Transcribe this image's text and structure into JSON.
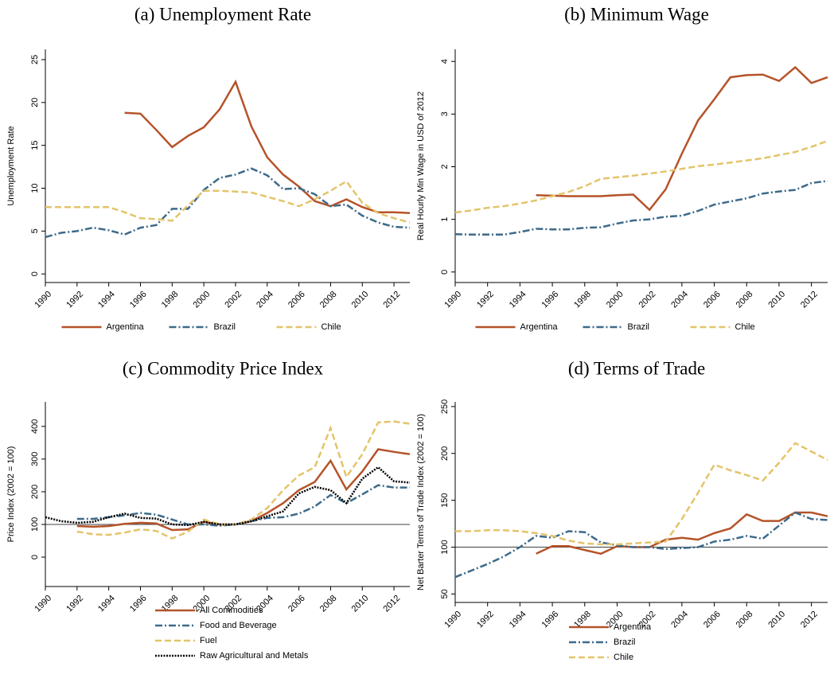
{
  "chart_data": [
    {
      "type": "line",
      "title": "(a) Unemployment Rate",
      "ylabel": "Unemployment Rate",
      "x": [
        1990,
        1991,
        1992,
        1993,
        1994,
        1995,
        1996,
        1997,
        1998,
        1999,
        2000,
        2001,
        2002,
        2003,
        2004,
        2005,
        2006,
        2007,
        2008,
        2009,
        2010,
        2011,
        2012,
        2013
      ],
      "xlim": [
        1990,
        2013
      ],
      "xticks": [
        1990,
        1992,
        1994,
        1996,
        1998,
        2000,
        2002,
        2004,
        2006,
        2008,
        2010,
        2012
      ],
      "ylim": [
        -1,
        26.2
      ],
      "yticks": [
        0,
        5,
        10,
        15,
        20,
        25
      ],
      "legend": "bottom",
      "legend_direction": "horizontal",
      "series": [
        {
          "name": "Argentina",
          "color": "#b5532a",
          "dash": "solid",
          "values": [
            null,
            null,
            null,
            null,
            null,
            18.8,
            18.7,
            16.8,
            14.8,
            16.1,
            17.1,
            19.2,
            22.4,
            17.2,
            13.6,
            11.6,
            10.2,
            8.5,
            7.9,
            8.7,
            7.8,
            7.2,
            7.2,
            7.1
          ]
        },
        {
          "name": "Brazil",
          "color": "#3d6a8a",
          "dash": "dash-dot",
          "values": [
            4.3,
            4.8,
            5.0,
            5.4,
            5.1,
            4.6,
            5.4,
            5.7,
            7.6,
            7.6,
            9.8,
            11.2,
            11.6,
            12.3,
            11.5,
            9.9,
            10.0,
            9.3,
            7.9,
            8.1,
            6.8,
            6.0,
            5.5,
            5.4
          ]
        },
        {
          "name": "Chile",
          "color": "#e3c46a",
          "dash": "dash",
          "values": [
            7.8,
            7.8,
            7.8,
            7.8,
            7.8,
            7.2,
            6.5,
            6.4,
            6.2,
            8.0,
            9.7,
            9.7,
            9.6,
            9.5,
            9.0,
            8.5,
            7.9,
            8.7,
            9.7,
            10.8,
            8.3,
            7.1,
            6.5,
            6.0
          ]
        }
      ]
    },
    {
      "type": "line",
      "title": "(b) Minimum Wage",
      "ylabel": "Real Hourly Min Wage in USD of 2012",
      "x": [
        1990,
        1991,
        1992,
        1993,
        1994,
        1995,
        1996,
        1997,
        1998,
        1999,
        2000,
        2001,
        2002,
        2003,
        2004,
        2005,
        2006,
        2007,
        2008,
        2009,
        2010,
        2011,
        2012,
        2013
      ],
      "xlim": [
        1990,
        2013
      ],
      "xticks": [
        1990,
        1992,
        1994,
        1996,
        1998,
        2000,
        2002,
        2004,
        2006,
        2008,
        2010,
        2012
      ],
      "ylim": [
        -0.2,
        4.23
      ],
      "yticks": [
        0,
        1,
        2,
        3,
        4
      ],
      "legend": "bottom",
      "legend_direction": "horizontal",
      "series": [
        {
          "name": "Argentina",
          "color": "#b5532a",
          "dash": "solid",
          "values": [
            null,
            null,
            null,
            null,
            null,
            1.46,
            1.45,
            1.44,
            1.44,
            1.44,
            1.46,
            1.47,
            1.18,
            1.57,
            2.25,
            2.88,
            3.28,
            3.7,
            3.74,
            3.75,
            3.63,
            3.89,
            3.59,
            3.7
          ]
        },
        {
          "name": "Brazil",
          "color": "#3d6a8a",
          "dash": "dash-dot",
          "values": [
            0.72,
            0.71,
            0.71,
            0.71,
            0.76,
            0.82,
            0.81,
            0.81,
            0.84,
            0.85,
            0.92,
            0.98,
            1.0,
            1.05,
            1.07,
            1.16,
            1.28,
            1.34,
            1.4,
            1.49,
            1.53,
            1.56,
            1.69,
            1.73
          ]
        },
        {
          "name": "Chile",
          "color": "#e3c46a",
          "dash": "dash",
          "values": [
            1.13,
            1.17,
            1.22,
            1.25,
            1.3,
            1.36,
            1.44,
            1.52,
            1.63,
            1.77,
            1.8,
            1.83,
            1.87,
            1.91,
            1.96,
            2.01,
            2.04,
            2.08,
            2.12,
            2.16,
            2.22,
            2.28,
            2.38,
            2.49
          ]
        }
      ]
    },
    {
      "type": "line",
      "title": "(c) Commodity Price Index",
      "ylabel": "Price Index (2002 = 100)",
      "x": [
        1990,
        1991,
        1992,
        1993,
        1994,
        1995,
        1996,
        1997,
        1998,
        1999,
        2000,
        2001,
        2002,
        2003,
        2004,
        2005,
        2006,
        2007,
        2008,
        2009,
        2010,
        2011,
        2012,
        2013
      ],
      "xlim": [
        1990,
        2013
      ],
      "xticks": [
        1990,
        1992,
        1994,
        1996,
        1998,
        2000,
        2002,
        2004,
        2006,
        2008,
        2010,
        2012
      ],
      "ylim": [
        -90,
        475
      ],
      "yticks": [
        0,
        100,
        200,
        300,
        400
      ],
      "hline": 100,
      "legend": "bottom",
      "legend_direction": "vertical",
      "series": [
        {
          "name": "All Commodities",
          "color": "#b5532a",
          "dash": "solid",
          "values": [
            null,
            null,
            95,
            93,
            95,
            102,
            105,
            103,
            83,
            85,
            108,
            100,
            100,
            110,
            135,
            165,
            205,
            230,
            295,
            207,
            262,
            330,
            322,
            315
          ]
        },
        {
          "name": "Food and Beverage",
          "color": "#3d6a8a",
          "dash": "dash-dot",
          "values": [
            null,
            null,
            117,
            117,
            122,
            128,
            135,
            130,
            115,
            100,
            100,
            96,
            100,
            110,
            120,
            122,
            133,
            155,
            190,
            165,
            192,
            220,
            213,
            213
          ]
        },
        {
          "name": "Fuel",
          "color": "#e3c46a",
          "dash": "dash",
          "values": [
            null,
            null,
            78,
            70,
            68,
            75,
            85,
            80,
            57,
            78,
            115,
            100,
            100,
            115,
            150,
            205,
            250,
            275,
            395,
            245,
            315,
            412,
            415,
            408
          ]
        },
        {
          "name": "Raw Agricultural and Metals",
          "color": "#000000",
          "dash": "dot",
          "values": [
            122,
            110,
            105,
            108,
            122,
            133,
            120,
            118,
            100,
            98,
            108,
            100,
            100,
            110,
            125,
            140,
            195,
            215,
            205,
            165,
            240,
            275,
            232,
            228
          ]
        }
      ]
    },
    {
      "type": "line",
      "title": "(d) Terms of Trade",
      "ylabel": "Net Barter Terms of Trade Index (2002 = 100)",
      "x": [
        1990,
        1991,
        1992,
        1993,
        1994,
        1995,
        1996,
        1997,
        1998,
        1999,
        2000,
        2001,
        2002,
        2003,
        2004,
        2005,
        2006,
        2007,
        2008,
        2009,
        2010,
        2011,
        2012,
        2013
      ],
      "xlim": [
        1990,
        2013
      ],
      "xticks": [
        1990,
        1992,
        1994,
        1996,
        1998,
        2000,
        2002,
        2004,
        2006,
        2008,
        2010,
        2012
      ],
      "ylim": [
        41,
        255
      ],
      "yticks": [
        50,
        100,
        150,
        200,
        250
      ],
      "hline": 100,
      "legend": "bottom",
      "legend_direction": "vertical",
      "series": [
        {
          "name": "Argentina",
          "color": "#b5532a",
          "dash": "solid",
          "values": [
            null,
            null,
            null,
            null,
            null,
            93,
            101,
            101,
            97,
            93,
            101,
            100,
            100,
            108,
            110,
            108,
            115,
            120,
            135,
            128,
            128,
            137,
            137,
            133
          ]
        },
        {
          "name": "Brazil",
          "color": "#3d6a8a",
          "dash": "dash-dot",
          "values": [
            68,
            75,
            82,
            90,
            100,
            112,
            110,
            117,
            116,
            105,
            102,
            100,
            100,
            98,
            99,
            100,
            106,
            108,
            112,
            109,
            123,
            137,
            130,
            129
          ]
        },
        {
          "name": "Chile",
          "color": "#e3c46a",
          "dash": "dash",
          "values": [
            117,
            117,
            118,
            118,
            117,
            115,
            112,
            107,
            104,
            103,
            103,
            104,
            105,
            106,
            130,
            158,
            188,
            182,
            177,
            171,
            190,
            211,
            202,
            193
          ]
        }
      ]
    }
  ]
}
